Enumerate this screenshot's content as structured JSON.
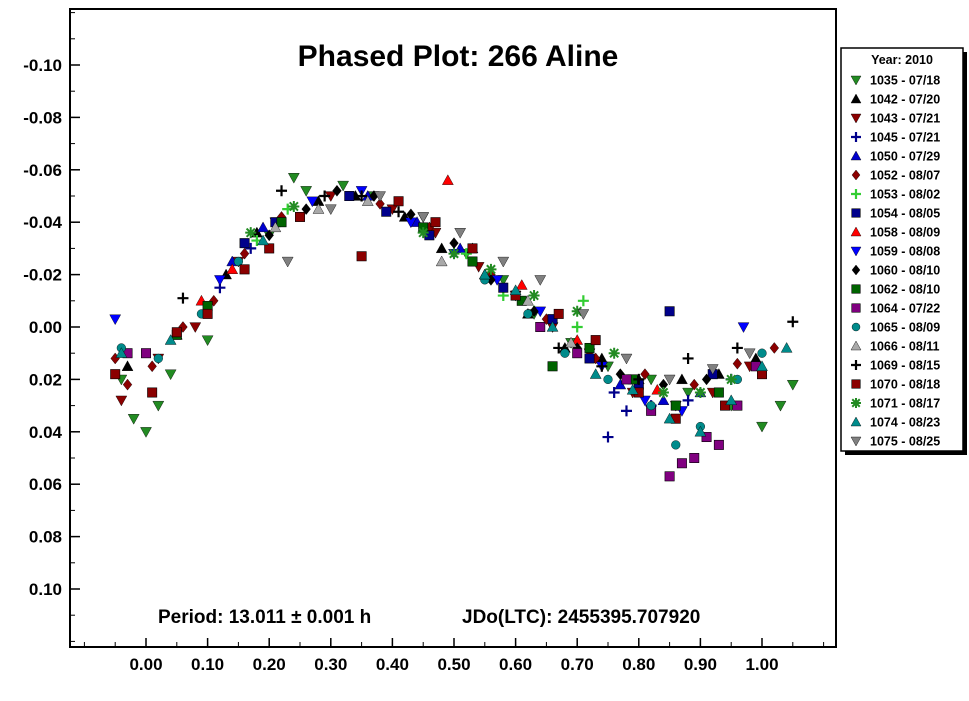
{
  "chart_data": {
    "type": "scatter",
    "title": "Phased Plot: 266 Aline",
    "xlabel": "",
    "ylabel": "",
    "xlim": [
      -0.12,
      1.12
    ],
    "ylim": [
      -0.125,
      0.12
    ],
    "y_inverted": true,
    "grid": false,
    "legend_position": "right",
    "x_ticks": [
      0.0,
      0.1,
      0.2,
      0.3,
      0.4,
      0.5,
      0.6,
      0.7,
      0.8,
      0.9,
      1.0
    ],
    "x_tick_labels": [
      "0.00",
      "0.10",
      "0.20",
      "0.30",
      "0.40",
      "0.50",
      "0.60",
      "0.70",
      "0.80",
      "0.90",
      "1.00"
    ],
    "y_ticks": [
      -0.1,
      -0.08,
      -0.06,
      -0.04,
      -0.02,
      0.0,
      0.02,
      0.04,
      0.06,
      0.08,
      0.1
    ],
    "y_tick_labels": [
      "-0.10",
      "-0.08",
      "-0.06",
      "-0.04",
      "-0.02",
      "0.00",
      "0.02",
      "0.04",
      "0.06",
      "0.08",
      "0.10"
    ],
    "legend_title": "Year: 2010",
    "period_text": "Period: 13.011 ± 0.001 h",
    "epoch_text": "JDo(LTC): 2455395.707920",
    "series": [
      {
        "name": "1035 - 07/18",
        "marker": "triangle-down",
        "color": "#228B22",
        "points": [
          [
            -0.04,
            0.02
          ],
          [
            -0.02,
            0.035
          ],
          [
            0.0,
            0.04
          ],
          [
            0.02,
            0.03
          ],
          [
            0.04,
            0.018
          ],
          [
            0.1,
            0.005
          ],
          [
            0.2,
            -0.035
          ],
          [
            0.24,
            -0.057
          ],
          [
            0.26,
            -0.052
          ],
          [
            0.32,
            -0.054
          ],
          [
            0.37,
            -0.05
          ],
          [
            0.45,
            -0.042
          ],
          [
            0.52,
            -0.028
          ],
          [
            0.58,
            -0.018
          ],
          [
            0.63,
            -0.005
          ],
          [
            0.69,
            0.006
          ],
          [
            0.75,
            0.015
          ],
          [
            0.82,
            0.02
          ],
          [
            0.88,
            0.025
          ],
          [
            0.95,
            0.03
          ],
          [
            1.0,
            0.038
          ],
          [
            1.03,
            0.03
          ],
          [
            1.05,
            0.022
          ]
        ]
      },
      {
        "name": "1042 - 07/20",
        "marker": "triangle-up",
        "color": "#000000",
        "points": [
          [
            -0.03,
            0.015
          ],
          [
            0.05,
            0.003
          ],
          [
            0.13,
            -0.02
          ],
          [
            0.18,
            -0.036
          ],
          [
            0.28,
            -0.048
          ],
          [
            0.34,
            -0.05
          ],
          [
            0.42,
            -0.042
          ],
          [
            0.48,
            -0.03
          ],
          [
            0.55,
            -0.02
          ],
          [
            0.62,
            -0.005
          ],
          [
            0.68,
            0.008
          ],
          [
            0.74,
            0.012
          ],
          [
            0.8,
            0.02
          ],
          [
            0.87,
            0.02
          ],
          [
            0.93,
            0.018
          ],
          [
            0.99,
            0.012
          ]
        ]
      },
      {
        "name": "1043 - 07/21",
        "marker": "triangle-down",
        "color": "#8B0000",
        "points": [
          [
            -0.04,
            0.028
          ],
          [
            0.02,
            0.012
          ],
          [
            0.08,
            0.0
          ],
          [
            0.15,
            -0.025
          ],
          [
            0.21,
            -0.04
          ],
          [
            0.3,
            -0.05
          ],
          [
            0.4,
            -0.045
          ],
          [
            0.47,
            -0.036
          ],
          [
            0.54,
            -0.023
          ],
          [
            0.6,
            -0.012
          ],
          [
            0.66,
            0.0
          ],
          [
            0.72,
            0.01
          ],
          [
            0.79,
            0.025
          ],
          [
            0.86,
            0.03
          ],
          [
            0.92,
            0.025
          ],
          [
            0.98,
            0.015
          ]
        ]
      },
      {
        "name": "1045 - 07/21",
        "marker": "plus",
        "color": "#00008B",
        "points": [
          [
            0.12,
            -0.015
          ],
          [
            0.17,
            -0.03
          ],
          [
            0.76,
            0.025
          ],
          [
            0.78,
            0.032
          ],
          [
            0.75,
            0.042
          ],
          [
            0.82,
            0.03
          ],
          [
            0.88,
            0.028
          ],
          [
            0.95,
            0.02
          ]
        ]
      },
      {
        "name": "1050 - 07/29",
        "marker": "triangle-up",
        "color": "#0000CD",
        "points": [
          [
            0.14,
            -0.025
          ],
          [
            0.19,
            -0.038
          ],
          [
            0.36,
            -0.05
          ],
          [
            0.44,
            -0.04
          ],
          [
            0.51,
            -0.03
          ],
          [
            0.77,
            0.022
          ],
          [
            0.84,
            0.028
          ],
          [
            0.9,
            0.025
          ]
        ]
      },
      {
        "name": "1052 - 08/07",
        "marker": "diamond",
        "color": "#8B0000",
        "points": [
          [
            -0.05,
            0.012
          ],
          [
            -0.03,
            0.022
          ],
          [
            0.01,
            0.015
          ],
          [
            0.06,
            0.0
          ],
          [
            0.11,
            -0.01
          ],
          [
            0.16,
            -0.028
          ],
          [
            0.22,
            -0.042
          ],
          [
            0.38,
            -0.047
          ],
          [
            0.46,
            -0.038
          ],
          [
            0.56,
            -0.02
          ],
          [
            0.65,
            -0.003
          ],
          [
            0.73,
            0.012
          ],
          [
            0.81,
            0.018
          ],
          [
            0.89,
            0.022
          ],
          [
            0.96,
            0.014
          ],
          [
            1.02,
            0.008
          ]
        ]
      },
      {
        "name": "1053 - 08/02",
        "marker": "plus",
        "color": "#32CD32",
        "points": [
          [
            0.18,
            -0.033
          ],
          [
            0.23,
            -0.045
          ],
          [
            0.52,
            -0.028
          ],
          [
            0.58,
            -0.012
          ],
          [
            0.63,
            -0.006
          ],
          [
            0.7,
            0.0
          ],
          [
            0.71,
            -0.01
          ]
        ]
      },
      {
        "name": "1054 - 08/05",
        "marker": "square",
        "color": "#00008B",
        "points": [
          [
            0.16,
            -0.032
          ],
          [
            0.21,
            -0.04
          ],
          [
            0.33,
            -0.05
          ],
          [
            0.39,
            -0.044
          ],
          [
            0.46,
            -0.035
          ],
          [
            0.58,
            -0.015
          ],
          [
            0.66,
            -0.003
          ],
          [
            0.72,
            0.012
          ],
          [
            0.8,
            0.022
          ],
          [
            0.85,
            -0.006
          ],
          [
            0.92,
            0.018
          ]
        ]
      },
      {
        "name": "1058 - 08/09",
        "marker": "triangle-up",
        "color": "#FF0000",
        "points": [
          [
            0.09,
            -0.01
          ],
          [
            0.14,
            -0.022
          ],
          [
            0.49,
            -0.056
          ],
          [
            0.53,
            -0.03
          ],
          [
            0.61,
            -0.016
          ],
          [
            0.7,
            0.005
          ],
          [
            0.83,
            0.024
          ]
        ]
      },
      {
        "name": "1059 - 08/08",
        "marker": "triangle-down",
        "color": "#0000FF",
        "points": [
          [
            -0.05,
            -0.003
          ],
          [
            0.12,
            -0.018
          ],
          [
            0.27,
            -0.048
          ],
          [
            0.35,
            -0.052
          ],
          [
            0.43,
            -0.04
          ],
          [
            0.5,
            -0.028
          ],
          [
            0.57,
            -0.018
          ],
          [
            0.64,
            -0.006
          ],
          [
            0.74,
            0.015
          ],
          [
            0.81,
            0.028
          ],
          [
            0.87,
            0.032
          ],
          [
            0.97,
            0.0
          ]
        ]
      },
      {
        "name": "1060 - 08/10",
        "marker": "diamond",
        "color": "#000000",
        "points": [
          [
            0.2,
            -0.035
          ],
          [
            0.26,
            -0.045
          ],
          [
            0.31,
            -0.052
          ],
          [
            0.37,
            -0.05
          ],
          [
            0.43,
            -0.043
          ],
          [
            0.5,
            -0.032
          ],
          [
            0.56,
            -0.018
          ],
          [
            0.63,
            -0.006
          ],
          [
            0.7,
            0.008
          ],
          [
            0.77,
            0.018
          ],
          [
            0.84,
            0.022
          ],
          [
            0.91,
            0.02
          ]
        ]
      },
      {
        "name": "1062 - 08/10",
        "marker": "square",
        "color": "#006400",
        "points": [
          [
            0.05,
            0.003
          ],
          [
            0.1,
            -0.008
          ],
          [
            0.22,
            -0.04
          ],
          [
            0.45,
            -0.038
          ],
          [
            0.53,
            -0.025
          ],
          [
            0.61,
            -0.01
          ],
          [
            0.66,
            0.015
          ],
          [
            0.72,
            0.008
          ],
          [
            0.79,
            0.02
          ],
          [
            0.86,
            0.03
          ],
          [
            0.93,
            0.025
          ]
        ]
      },
      {
        "name": "1064 - 07/22",
        "marker": "square",
        "color": "#800080",
        "points": [
          [
            -0.03,
            0.01
          ],
          [
            0.0,
            0.01
          ],
          [
            0.64,
            0.0
          ],
          [
            0.7,
            0.01
          ],
          [
            0.78,
            0.02
          ],
          [
            0.82,
            0.032
          ],
          [
            0.85,
            0.057
          ],
          [
            0.87,
            0.052
          ],
          [
            0.89,
            0.05
          ],
          [
            0.91,
            0.042
          ],
          [
            0.93,
            0.045
          ],
          [
            0.96,
            0.03
          ],
          [
            0.99,
            0.015
          ]
        ]
      },
      {
        "name": "1065 - 08/09",
        "marker": "circle",
        "color": "#008B8B",
        "points": [
          [
            -0.04,
            0.008
          ],
          [
            0.02,
            0.012
          ],
          [
            0.09,
            -0.005
          ],
          [
            0.15,
            -0.025
          ],
          [
            0.55,
            -0.018
          ],
          [
            0.62,
            -0.005
          ],
          [
            0.68,
            0.01
          ],
          [
            0.75,
            0.02
          ],
          [
            0.82,
            0.03
          ],
          [
            0.86,
            0.045
          ],
          [
            0.9,
            0.038
          ],
          [
            0.96,
            0.02
          ],
          [
            1.0,
            0.01
          ]
        ]
      },
      {
        "name": "1066 - 08/11",
        "marker": "triangle-up",
        "color": "#A9A9A9",
        "points": [
          [
            0.21,
            -0.038
          ],
          [
            0.28,
            -0.045
          ],
          [
            0.36,
            -0.048
          ],
          [
            0.48,
            -0.025
          ],
          [
            0.55,
            -0.02
          ],
          [
            0.62,
            -0.01
          ],
          [
            0.69,
            0.006
          ]
        ]
      },
      {
        "name": "1069 - 08/15",
        "marker": "plus",
        "color": "#000000",
        "points": [
          [
            0.06,
            -0.011
          ],
          [
            0.22,
            -0.052
          ],
          [
            0.29,
            -0.05
          ],
          [
            0.35,
            -0.05
          ],
          [
            0.41,
            -0.044
          ],
          [
            0.67,
            0.008
          ],
          [
            0.74,
            0.015
          ],
          [
            0.8,
            0.02
          ],
          [
            0.88,
            0.012
          ],
          [
            0.96,
            0.008
          ],
          [
            1.05,
            -0.002
          ]
        ]
      },
      {
        "name": "1070 - 08/18",
        "marker": "square",
        "color": "#8B0000",
        "points": [
          [
            -0.05,
            0.018
          ],
          [
            0.01,
            0.025
          ],
          [
            0.05,
            0.002
          ],
          [
            0.1,
            -0.005
          ],
          [
            0.16,
            -0.022
          ],
          [
            0.2,
            -0.03
          ],
          [
            0.25,
            -0.042
          ],
          [
            0.35,
            -0.027
          ],
          [
            0.41,
            -0.048
          ],
          [
            0.47,
            -0.04
          ],
          [
            0.53,
            -0.03
          ],
          [
            0.6,
            -0.012
          ],
          [
            0.67,
            -0.005
          ],
          [
            0.73,
            0.005
          ],
          [
            0.8,
            0.025
          ],
          [
            0.86,
            0.035
          ],
          [
            0.94,
            0.03
          ],
          [
            1.0,
            0.018
          ]
        ]
      },
      {
        "name": "1071 - 08/17",
        "marker": "asterisk",
        "color": "#228B22",
        "points": [
          [
            0.17,
            -0.036
          ],
          [
            0.24,
            -0.046
          ],
          [
            0.45,
            -0.036
          ],
          [
            0.5,
            -0.028
          ],
          [
            0.56,
            -0.022
          ],
          [
            0.63,
            -0.012
          ],
          [
            0.7,
            -0.006
          ],
          [
            0.76,
            0.01
          ],
          [
            0.84,
            0.025
          ],
          [
            0.9,
            0.025
          ],
          [
            0.95,
            0.02
          ]
        ]
      },
      {
        "name": "1074 - 08/23",
        "marker": "triangle-up",
        "color": "#008B8B",
        "points": [
          [
            -0.04,
            0.01
          ],
          [
            0.04,
            0.005
          ],
          [
            0.19,
            -0.033
          ],
          [
            0.55,
            -0.02
          ],
          [
            0.6,
            -0.014
          ],
          [
            0.66,
            0.0
          ],
          [
            0.73,
            0.018
          ],
          [
            0.79,
            0.024
          ],
          [
            0.85,
            0.035
          ],
          [
            0.9,
            0.04
          ],
          [
            0.95,
            0.028
          ],
          [
            1.0,
            0.015
          ],
          [
            1.04,
            0.008
          ]
        ]
      },
      {
        "name": "1075 - 08/25",
        "marker": "triangle-down",
        "color": "#808080",
        "points": [
          [
            0.23,
            -0.025
          ],
          [
            0.3,
            -0.045
          ],
          [
            0.38,
            -0.05
          ],
          [
            0.45,
            -0.042
          ],
          [
            0.51,
            -0.036
          ],
          [
            0.58,
            -0.025
          ],
          [
            0.64,
            -0.018
          ],
          [
            0.71,
            -0.005
          ],
          [
            0.78,
            0.012
          ],
          [
            0.85,
            0.02
          ],
          [
            0.92,
            0.016
          ],
          [
            0.98,
            0.01
          ]
        ]
      }
    ]
  }
}
